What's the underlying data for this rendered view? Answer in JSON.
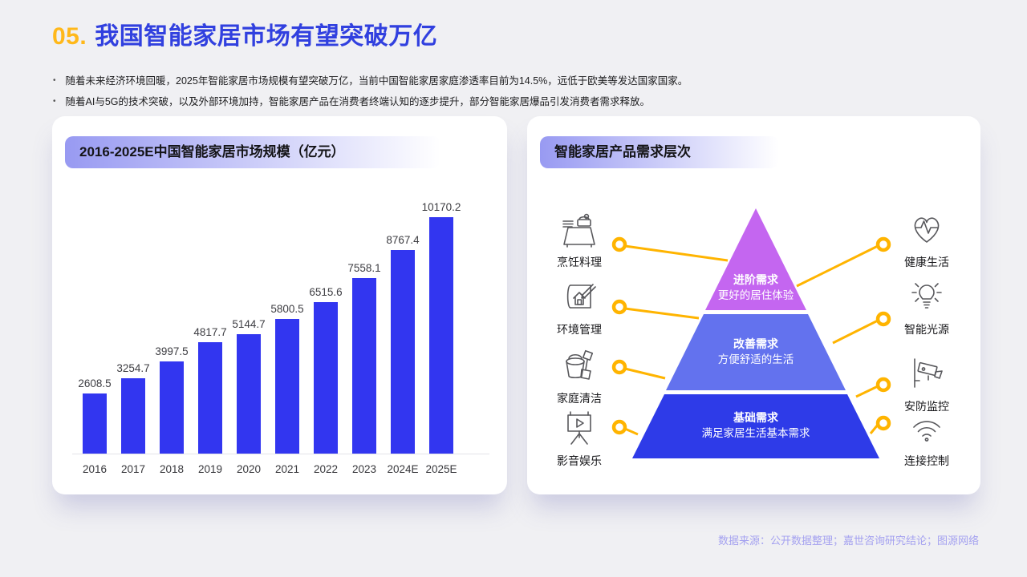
{
  "page": {
    "title_number": "05.",
    "title": "我国智能家居市场有望突破万亿",
    "bullets": [
      "随着未来经济环境回暖，2025年智能家居市场规模有望突破万亿，当前中国智能家居家庭渗透率目前为14.5%，远低于欧美等发达国家国家。",
      "随着AI与5G的技术突破，以及外部环境加持，智能家居产品在消费者终端认知的逐步提升，部分智能家居爆品引发消费者需求释放。"
    ],
    "footer": "数据来源：公开数据整理；嘉世咨询研究结论；图源网络"
  },
  "chart_card": {
    "title": "2016-2025E中国智能家居市场规模（亿元）"
  },
  "chart_data": {
    "type": "bar",
    "title": "2016-2025E中国智能家居市场规模（亿元）",
    "categories": [
      "2016",
      "2017",
      "2018",
      "2019",
      "2020",
      "2021",
      "2022",
      "2023",
      "2024E",
      "2025E"
    ],
    "values": [
      2608.5,
      3254.7,
      3997.5,
      4817.7,
      5144.7,
      5800.5,
      6515.6,
      7558.1,
      8767.4,
      10170.2
    ],
    "xlabel": "",
    "ylabel": "亿元",
    "ylim": [
      0,
      10500
    ],
    "grid": false,
    "legend": false,
    "data_labels": true,
    "bar_color": "#3236f0"
  },
  "pyramid_card": {
    "title": "智能家居产品需求层次",
    "levels": [
      {
        "name": "进阶需求",
        "desc": "更好的居住体验",
        "color": "#c466f0"
      },
      {
        "name": "改善需求",
        "desc": "方便舒适的生活",
        "color": "#6372ee"
      },
      {
        "name": "基础需求",
        "desc": "满足家居生活基本需求",
        "color": "#2e3be8"
      }
    ],
    "left_items": [
      {
        "label": "烹饪料理",
        "icon": "rice-cooker-icon"
      },
      {
        "label": "环境管理",
        "icon": "blueprint-house-icon"
      },
      {
        "label": "家庭清洁",
        "icon": "cleaning-bucket-icon"
      },
      {
        "label": "影音娱乐",
        "icon": "projector-screen-icon"
      }
    ],
    "right_items": [
      {
        "label": "健康生活",
        "icon": "heart-pulse-icon"
      },
      {
        "label": "智能光源",
        "icon": "light-bulb-icon"
      },
      {
        "label": "安防监控",
        "icon": "security-camera-icon"
      },
      {
        "label": "连接控制",
        "icon": "wifi-icon"
      }
    ],
    "connector_color": "#ffb400"
  }
}
